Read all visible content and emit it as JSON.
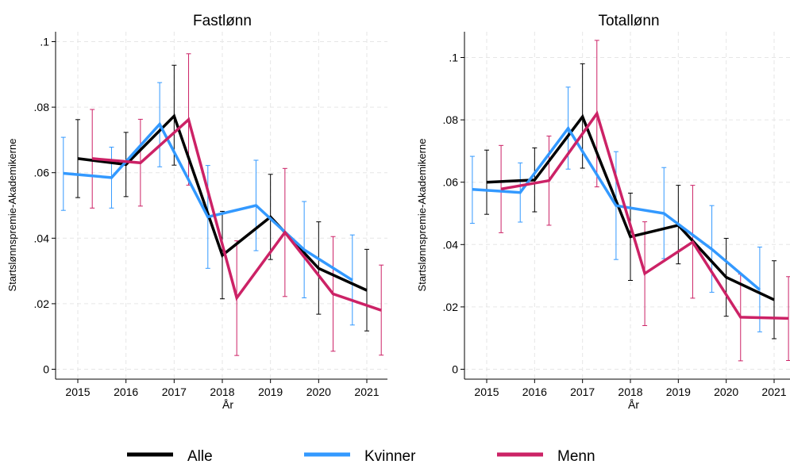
{
  "chart_data": [
    {
      "type": "line",
      "title": "Fastlønn",
      "xlabel": "År",
      "ylabel": "Startslønnspremie-Akademikerne",
      "categories": [
        "2015",
        "2016",
        "2017",
        "2018",
        "2019",
        "2020",
        "2021"
      ],
      "yticks": [
        ".1",
        ".08",
        ".06",
        ".04",
        ".02",
        "0"
      ],
      "ylim": [
        0,
        0.1
      ],
      "grid": true,
      "error_bars": true,
      "series": [
        {
          "name": "Alle",
          "color": "#000000",
          "x": [
            2015,
            2016,
            2017,
            2018,
            2019,
            2020,
            2021
          ],
          "values": [
            0.0643,
            0.0625,
            0.0773,
            0.0348,
            0.0465,
            0.0308,
            0.0241
          ],
          "low": [
            0.0524,
            0.0527,
            0.0623,
            0.0215,
            0.0335,
            0.0168,
            0.0117
          ],
          "high": [
            0.0762,
            0.0723,
            0.0928,
            0.0482,
            0.0595,
            0.045,
            0.0366
          ]
        },
        {
          "name": "Kvinner",
          "color": "#3399ff",
          "x": [
            2014.7,
            2015.7,
            2016.7,
            2017.7,
            2018.7,
            2019.7,
            2020.7
          ],
          "values": [
            0.0598,
            0.0585,
            0.0748,
            0.0465,
            0.05,
            0.0365,
            0.0272
          ],
          "low": [
            0.0485,
            0.0492,
            0.0618,
            0.0308,
            0.0362,
            0.0218,
            0.0135
          ],
          "high": [
            0.0708,
            0.0678,
            0.0875,
            0.0622,
            0.0638,
            0.0512,
            0.041
          ]
        },
        {
          "name": "Menn",
          "color": "#cc2266",
          "x": [
            2015.3,
            2016.3,
            2017.3,
            2018.3,
            2019.3,
            2020.3,
            2021.3
          ],
          "values": [
            0.0643,
            0.063,
            0.0762,
            0.0218,
            0.0418,
            0.023,
            0.018
          ],
          "low": [
            0.0492,
            0.0498,
            0.0562,
            0.0042,
            0.0222,
            0.0055,
            0.0043
          ],
          "high": [
            0.0793,
            0.0763,
            0.0963,
            0.0392,
            0.0613,
            0.0405,
            0.0318
          ]
        }
      ]
    },
    {
      "type": "line",
      "title": "Totallønn",
      "xlabel": "År",
      "ylabel": "Startslønnspremie-Akademikerne",
      "categories": [
        "2015",
        "2016",
        "2017",
        "2018",
        "2019",
        "2020",
        "2021"
      ],
      "yticks": [
        ".1",
        ".08",
        ".06",
        ".04",
        ".02",
        "0"
      ],
      "ylim": [
        0,
        0.1
      ],
      "grid": true,
      "error_bars": true,
      "series": [
        {
          "name": "Alle",
          "color": "#000000",
          "x": [
            2015,
            2016,
            2017,
            2018,
            2019,
            2020,
            2021
          ],
          "values": [
            0.06,
            0.0607,
            0.081,
            0.0425,
            0.0462,
            0.0295,
            0.0223
          ],
          "low": [
            0.0497,
            0.0505,
            0.0645,
            0.0285,
            0.0338,
            0.017,
            0.0098
          ],
          "high": [
            0.0703,
            0.071,
            0.098,
            0.0565,
            0.059,
            0.042,
            0.0348
          ]
        },
        {
          "name": "Kvinner",
          "color": "#3399ff",
          "x": [
            2014.7,
            2015.7,
            2016.7,
            2017.7,
            2018.7,
            2019.7,
            2020.7
          ],
          "values": [
            0.0577,
            0.0567,
            0.0773,
            0.0525,
            0.05,
            0.0385,
            0.0255
          ],
          "low": [
            0.0468,
            0.0472,
            0.0642,
            0.0352,
            0.0355,
            0.0247,
            0.012
          ],
          "high": [
            0.0683,
            0.0662,
            0.0905,
            0.0698,
            0.0647,
            0.0525,
            0.0392
          ]
        },
        {
          "name": "Menn",
          "color": "#cc2266",
          "x": [
            2015.3,
            2016.3,
            2017.3,
            2018.3,
            2019.3,
            2020.3,
            2021.3
          ],
          "values": [
            0.0578,
            0.0605,
            0.082,
            0.0307,
            0.0408,
            0.0167,
            0.0163
          ],
          "low": [
            0.0438,
            0.0462,
            0.0585,
            0.014,
            0.0228,
            0.0027,
            0.0028
          ],
          "high": [
            0.0718,
            0.0748,
            0.1055,
            0.0473,
            0.059,
            0.0305,
            0.0297
          ]
        }
      ]
    }
  ],
  "legend": {
    "placement": "bottom",
    "items": [
      {
        "label": "Alle",
        "color": "#000000"
      },
      {
        "label": "Kvinner",
        "color": "#3399ff"
      },
      {
        "label": "Menn",
        "color": "#cc2266"
      }
    ]
  }
}
